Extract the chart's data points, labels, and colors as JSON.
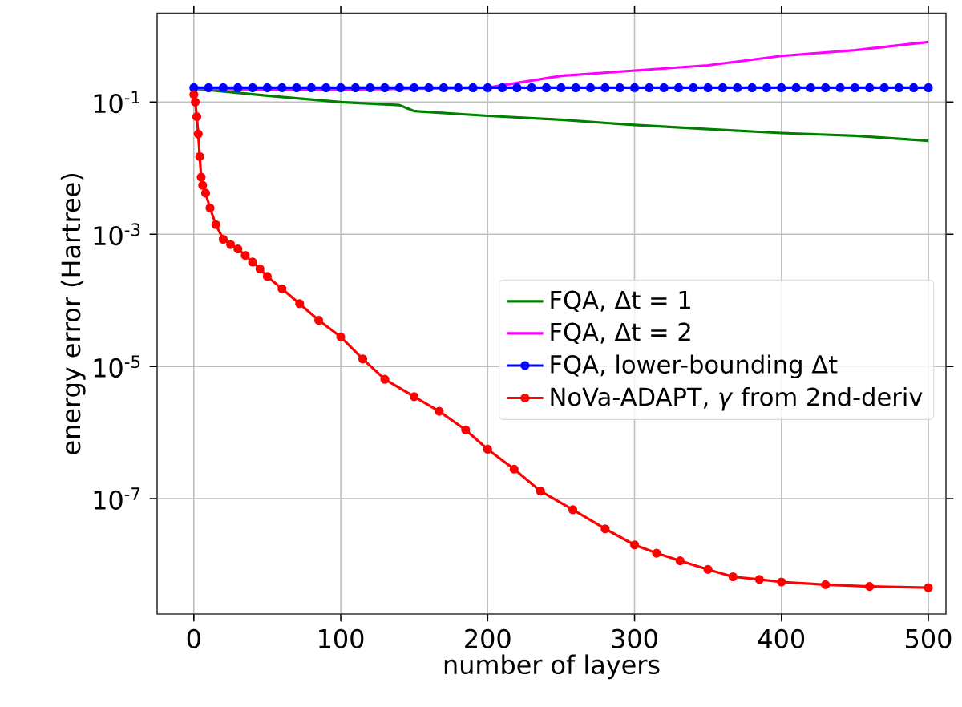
{
  "chart_data": {
    "type": "line",
    "xlabel": "number of layers",
    "ylabel": "energy error (Hartree)",
    "log": "y",
    "grid": true,
    "legend": "right",
    "xlim": [
      -25,
      512
    ],
    "ylim": [
      1.8e-09,
      2.2
    ],
    "xticks": [
      0,
      100,
      200,
      300,
      400,
      500
    ],
    "yticks": [
      {
        "value": 0.1,
        "label": "10$^{-1}$"
      },
      {
        "value": 0.001,
        "label": "10$^{-3}$"
      },
      {
        "value": 1e-05,
        "label": "10$^{-5}$"
      },
      {
        "value": 1e-07,
        "label": "10$^{-7}$"
      }
    ],
    "series": [
      {
        "name": "FQA, Δt = 1",
        "color": "#008000",
        "marker": "none",
        "x": [
          0,
          50,
          100,
          140,
          150,
          200,
          250,
          300,
          350,
          400,
          450,
          500
        ],
        "values": [
          0.16,
          0.125,
          0.1,
          0.09,
          0.073,
          0.062,
          0.054,
          0.045,
          0.039,
          0.034,
          0.031,
          0.026
        ]
      },
      {
        "name": "FQA, Δt = 2",
        "color": "#ff00ff",
        "marker": "none",
        "x": [
          0,
          50,
          100,
          150,
          200,
          250,
          300,
          350,
          400,
          450,
          500
        ],
        "values": [
          0.16,
          0.155,
          0.155,
          0.16,
          0.165,
          0.25,
          0.3,
          0.36,
          0.5,
          0.61,
          0.81
        ]
      },
      {
        "name": "FQA, lower-bounding Δt",
        "color": "#0000ff",
        "marker": "circle",
        "x": [
          0,
          10,
          20,
          30,
          40,
          50,
          60,
          70,
          80,
          90,
          100,
          110,
          120,
          130,
          140,
          150,
          160,
          170,
          180,
          190,
          200,
          210,
          220,
          230,
          240,
          250,
          260,
          270,
          280,
          290,
          300,
          310,
          320,
          330,
          340,
          350,
          360,
          370,
          380,
          390,
          400,
          410,
          420,
          430,
          440,
          450,
          460,
          470,
          480,
          490,
          500
        ],
        "values": [
          0.165,
          0.165,
          0.165,
          0.165,
          0.165,
          0.165,
          0.165,
          0.165,
          0.165,
          0.165,
          0.165,
          0.165,
          0.165,
          0.165,
          0.165,
          0.165,
          0.165,
          0.165,
          0.165,
          0.165,
          0.165,
          0.165,
          0.165,
          0.165,
          0.165,
          0.165,
          0.165,
          0.165,
          0.165,
          0.165,
          0.165,
          0.165,
          0.165,
          0.165,
          0.165,
          0.165,
          0.165,
          0.165,
          0.165,
          0.165,
          0.165,
          0.165,
          0.165,
          0.165,
          0.165,
          0.165,
          0.165,
          0.165,
          0.165,
          0.165,
          0.165
        ]
      },
      {
        "name": "NoVa-ADAPT, *γ* from 2nd-deriv",
        "color": "#ff0000",
        "marker": "circle",
        "x": [
          0,
          1,
          2,
          3,
          4,
          5,
          6,
          8,
          11,
          15,
          20,
          25,
          30,
          35,
          40,
          45,
          50,
          60,
          72,
          85,
          100,
          115,
          130,
          150,
          167,
          185,
          200,
          218,
          236,
          258,
          280,
          300,
          315,
          331,
          350,
          367,
          385,
          400,
          430,
          460,
          500
        ],
        "values": [
          0.13,
          0.1,
          0.06,
          0.033,
          0.015,
          0.0073,
          0.0055,
          0.0042,
          0.0025,
          0.0014,
          0.00084,
          0.0007,
          0.0006,
          0.00048,
          0.00038,
          0.0003,
          0.00023,
          0.00015,
          8.9e-05,
          5e-05,
          2.8e-05,
          1.3e-05,
          6.4e-06,
          3.5e-06,
          2.1e-06,
          1.1e-06,
          5.6e-07,
          2.8e-07,
          1.3e-07,
          6.8e-08,
          3.5e-08,
          2e-08,
          1.5e-08,
          1.15e-08,
          8.5e-09,
          6.6e-09,
          6e-09,
          5.5e-09,
          5e-09,
          4.7e-09,
          4.5e-09
        ]
      }
    ]
  }
}
